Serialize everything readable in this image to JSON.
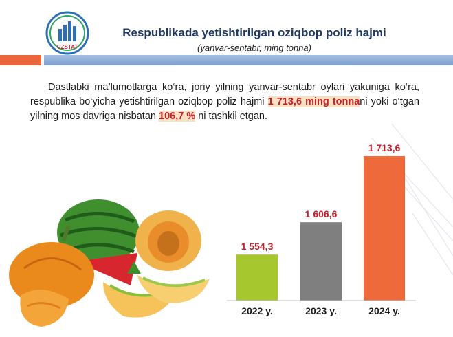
{
  "header": {
    "logo_text": "UZSTAT",
    "title": "Respublikada yetishtirilgan oziqbop poliz hajmi",
    "subtitle": "(yanvar-sentabr, ming tonna)"
  },
  "paragraph": {
    "part1": "Dastlabki ma’lumotlarga ko‘ra, joriy yilning yanvar-sentabr oylari yakuniga ko‘ra, respublika bo‘yicha yetishtirilgan oziqbop poliz hajmi ",
    "highlight1": "1 713,6 ming tonna",
    "part2": "ni yoki o‘tgan yilning mos davriga nisbatan ",
    "highlight2": "106,7 %",
    "part3": " ni  tashkil etgan."
  },
  "colors": {
    "title": "#1f3864",
    "highlight_text": "#c0202a",
    "highlight_bg": "#fbe1c4"
  },
  "chart_data": {
    "type": "bar",
    "categories": [
      "2022 y.",
      "2023 y.",
      "2024 y."
    ],
    "values": [
      1554.3,
      1606.6,
      1713.6
    ],
    "value_labels": [
      "1 554,3",
      "1 606,6",
      "1 713,6"
    ],
    "colors": [
      "#a6c72d",
      "#7f7f7f",
      "#ee6a3b"
    ],
    "title": "",
    "xlabel": "",
    "ylabel": "",
    "grid": false,
    "legend": "none"
  }
}
